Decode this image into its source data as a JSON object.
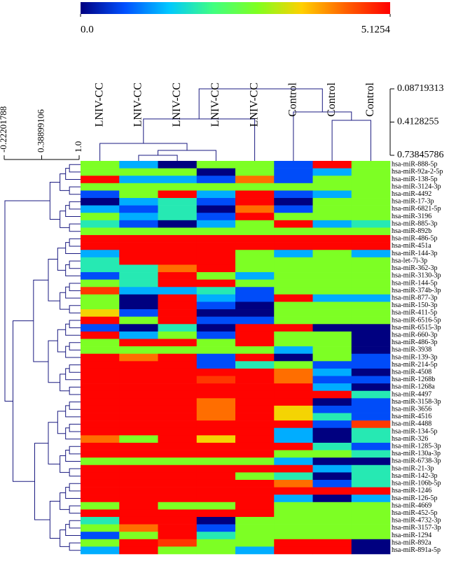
{
  "chart_data": {
    "type": "heatmap",
    "columns": [
      "LNIV-CC",
      "LNIV-CC",
      "LNIV-CC",
      "LNIV-CC",
      "LNIV-CC",
      "Control",
      "Control",
      "Control"
    ],
    "rows": [
      "hsa-miR-888-5p",
      "hsa-miR-92a-2-5p",
      "hsa-miR-138-5p",
      "hsa-miR-3124-3p",
      "hsa-miR-4492",
      "hsa-miR-17-3p",
      "hsa-miR-6821-5p",
      "hsa-miR-3196",
      "hsa-miR-885-3p",
      "hsa-miR-892b",
      "hsa-miR-486-5p",
      "hsa-miR-451a",
      "hsa-miR-144-3p",
      "hsa-let-7i-3p",
      "hsa-miR-362-3p",
      "hsa-miR-3130-3p",
      "hsa-miR-144-5p",
      "hsa-miR-374b-3p",
      "hsa-miR-877-3p",
      "hsa-miR-150-3p",
      "hsa-miR-411-5p",
      "hsa-miR-6516-5p",
      "hsa-miR-6515-3p",
      "hsa-miR-660-3p",
      "hsa-miR-486-3p",
      "hsa-miR-3938",
      "hsa-miR-139-3p",
      "hsa-miR-214-5p",
      "hsa-miR-4508",
      "hsa-miR-1268b",
      "hsa-miR-1268a",
      "hsa-miR-4497",
      "hsa-miR-3158-3p",
      "hsa-miR-3656",
      "hsa-miR-4516",
      "hsa-miR-4488",
      "hsa-miR-134-5p",
      "hsa-miR-326",
      "hsa-miR-1285-3p",
      "hsa-miR-130a-3p",
      "hsa-miR-6738-3p",
      "hsa-miR-21-3p",
      "hsa-miR-142-3p",
      "hsa-miR-106b-5p",
      "hsa-miR-1246",
      "hsa-miR-126-5p",
      "hsa-miR-4669",
      "hsa-miR-452-5p",
      "hsa-miR-4732-3p",
      "hsa-miR-3157-3p",
      "hsa-miR-1294",
      "hsa-miR-892a",
      "hsa-miR-891a-5p"
    ],
    "values": [
      [
        2.9,
        1.3,
        0,
        2.9,
        2.9,
        0.7,
        5.1,
        2.9
      ],
      [
        2.9,
        2.9,
        2.9,
        0,
        2.9,
        0.7,
        1.3,
        2.9
      ],
      [
        5.1,
        1.3,
        1.3,
        0.7,
        4.3,
        0.7,
        2.9,
        2.9
      ],
      [
        2.9,
        2.9,
        2.9,
        2.9,
        2.9,
        2.9,
        2.9,
        2.9
      ],
      [
        0.7,
        2.9,
        5.1,
        1.3,
        5.1,
        0.7,
        1.3,
        2.9
      ],
      [
        0,
        1.3,
        1.9,
        0.7,
        5.1,
        0,
        2.9,
        2.9
      ],
      [
        1.3,
        0.7,
        1.9,
        0,
        4.3,
        0.7,
        2.9,
        2.9
      ],
      [
        2.9,
        1.3,
        1.9,
        0.7,
        5.1,
        2.9,
        2.9,
        2.9
      ],
      [
        1.9,
        0.7,
        0,
        1.3,
        2.9,
        5.1,
        1.3,
        1.9
      ],
      [
        2.9,
        2.9,
        2.9,
        2.9,
        2.9,
        2.9,
        2.9,
        2.9
      ],
      [
        5.1,
        5.1,
        5.1,
        5.1,
        5.1,
        5.1,
        5.1,
        5.1
      ],
      [
        5.1,
        5.1,
        5.1,
        5.1,
        5.1,
        5.1,
        5.1,
        5.1
      ],
      [
        1.3,
        5.1,
        5.1,
        5.1,
        2.9,
        1.3,
        2.9,
        1.3
      ],
      [
        1.9,
        5.1,
        5.1,
        5.1,
        2.9,
        2.9,
        2.9,
        2.9
      ],
      [
        1.9,
        1.9,
        4.3,
        5.1,
        2.9,
        2.9,
        2.9,
        2.9
      ],
      [
        0.7,
        1.9,
        5.1,
        2.9,
        1.3,
        2.9,
        2.9,
        2.9
      ],
      [
        2.9,
        1.9,
        5.1,
        5.1,
        2.9,
        2.9,
        2.9,
        2.9
      ],
      [
        4.7,
        1.3,
        1.3,
        1.9,
        0.7,
        2.9,
        2.9,
        2.9
      ],
      [
        2.9,
        0,
        5.1,
        1.3,
        0.7,
        5.1,
        1.3,
        1.3
      ],
      [
        2.9,
        0,
        5.1,
        0.7,
        0,
        2.9,
        2.9,
        2.9
      ],
      [
        3.6,
        0.7,
        5.1,
        0,
        0,
        2.9,
        2.9,
        2.9
      ],
      [
        5.1,
        2.9,
        5.1,
        0.7,
        0.7,
        2.9,
        2.9,
        2.9
      ],
      [
        0.7,
        0,
        1.9,
        0,
        5.1,
        5.1,
        0,
        0
      ],
      [
        5.1,
        1.3,
        2.9,
        0.7,
        5.1,
        2.9,
        2.9,
        0
      ],
      [
        2.9,
        5.1,
        5.1,
        2.9,
        5.1,
        2.9,
        2.9,
        0
      ],
      [
        2.9,
        2.9,
        2.9,
        2.9,
        2.9,
        1.3,
        2.9,
        0
      ],
      [
        5.1,
        4.3,
        5.1,
        0.7,
        5.1,
        0,
        2.9,
        0.7
      ],
      [
        5.1,
        5.1,
        5.1,
        0.7,
        1.9,
        2.9,
        0.7,
        0.7
      ],
      [
        5.1,
        5.1,
        5.1,
        5.1,
        5.1,
        4.3,
        1.3,
        0
      ],
      [
        5.1,
        5.1,
        5.1,
        4.7,
        5.1,
        4.3,
        0.7,
        0.7
      ],
      [
        5.1,
        5.1,
        5.1,
        5.1,
        5.1,
        5.1,
        1.3,
        0
      ],
      [
        5.1,
        5.1,
        5.1,
        5.1,
        5.1,
        5.1,
        5.1,
        1.9
      ],
      [
        5.1,
        5.1,
        5.1,
        4.3,
        5.1,
        5.1,
        0,
        0.7
      ],
      [
        5.1,
        5.1,
        5.1,
        4.3,
        5.1,
        3.6,
        0.7,
        0.7
      ],
      [
        5.1,
        5.1,
        5.1,
        4.3,
        5.1,
        3.6,
        1.9,
        0.7
      ],
      [
        5.1,
        5.1,
        5.1,
        5.1,
        5.1,
        5.1,
        0.7,
        4.7
      ],
      [
        5.1,
        5.1,
        5.1,
        5.1,
        5.1,
        1.3,
        0,
        1.9
      ],
      [
        4.3,
        2.9,
        5.1,
        3.6,
        5.1,
        1.3,
        0,
        1.9
      ],
      [
        5.1,
        5.1,
        5.1,
        5.1,
        5.1,
        5.1,
        1.9,
        0.7
      ],
      [
        5.1,
        5.1,
        5.1,
        5.1,
        5.1,
        2.9,
        2.9,
        1.9
      ],
      [
        2.9,
        2.9,
        2.9,
        2.9,
        2.9,
        1.3,
        0,
        0
      ],
      [
        5.1,
        5.1,
        5.1,
        5.1,
        5.1,
        5.1,
        1.3,
        1.9
      ],
      [
        5.1,
        5.1,
        5.1,
        5.1,
        2.9,
        1.9,
        0,
        1.9
      ],
      [
        5.1,
        5.1,
        5.1,
        5.1,
        5.1,
        4.3,
        0.7,
        1.9
      ],
      [
        5.1,
        5.1,
        5.1,
        5.1,
        5.1,
        5.1,
        5.1,
        5.1
      ],
      [
        5.1,
        5.1,
        5.1,
        5.1,
        5.1,
        1.3,
        0,
        1.3
      ],
      [
        2.9,
        5.1,
        2.9,
        2.9,
        5.1,
        2.9,
        2.9,
        2.9
      ],
      [
        5.1,
        5.1,
        5.1,
        5.1,
        5.1,
        2.9,
        2.9,
        2.9
      ],
      [
        1.9,
        5.1,
        5.1,
        0,
        2.9,
        2.9,
        2.9,
        2.9
      ],
      [
        2.9,
        4.3,
        5.1,
        0.7,
        2.9,
        2.9,
        2.9,
        2.9
      ],
      [
        0.7,
        2.9,
        5.1,
        1.9,
        2.9,
        2.9,
        2.9,
        2.9
      ],
      [
        2.9,
        5.1,
        4.7,
        2.9,
        2.9,
        5.1,
        5.1,
        0
      ],
      [
        1.3,
        5.1,
        2.9,
        2.9,
        1.3,
        5.1,
        5.1,
        0
      ]
    ],
    "colors": [
      "#000080",
      "#0050ff",
      "#00c8ff",
      "#40ff80",
      "#80ff20",
      "#ffd000",
      "#ff6000",
      "#ff0000"
    ],
    "clim": [
      0,
      5.1254
    ],
    "colorbar_ticks": [
      {
        "value": 0,
        "label": "0.0"
      },
      5.1254
    ],
    "col_tree_ticks": [
      0.08719313,
      0.4128255,
      0.73845786
    ],
    "row_tree_ticks": [
      -0.22201788,
      0.38899106,
      {
        "value": 1,
        "label": "1.0"
      }
    ]
  }
}
